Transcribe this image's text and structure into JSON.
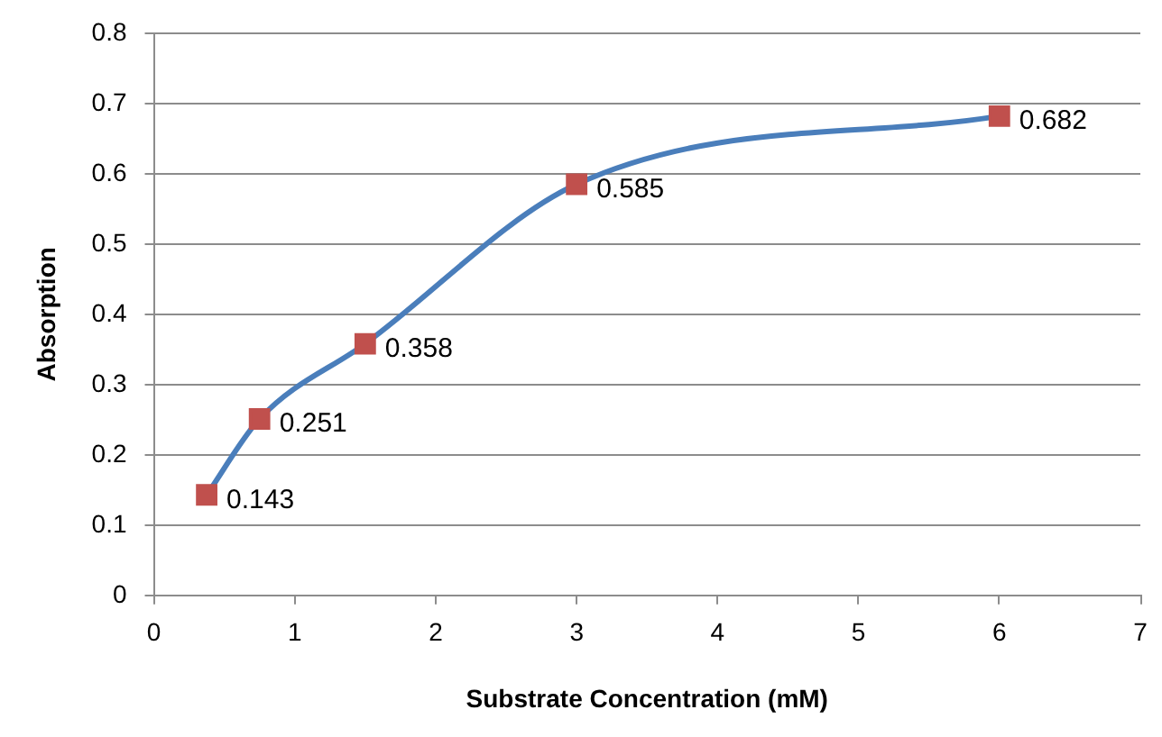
{
  "chart_data": {
    "type": "line",
    "xlabel": "Substrate Concentration (mM)",
    "ylabel": "Absorption",
    "x": [
      0.375,
      0.75,
      1.5,
      3,
      6
    ],
    "series": [
      {
        "color": "#4a7ebb",
        "values": [
          0.143,
          0.251,
          0.358,
          0.585,
          0.682
        ]
      }
    ],
    "xlim": [
      0,
      7
    ],
    "xticks": [
      0,
      1,
      2,
      3,
      4,
      5,
      6,
      7
    ],
    "ylim": [
      0,
      0.8
    ],
    "yticks": [
      0,
      0.1,
      0.2,
      0.3,
      0.4,
      0.5,
      0.6,
      0.7,
      0.8
    ],
    "grid": "y",
    "marker": "square",
    "data_labels": true,
    "legend": false
  }
}
